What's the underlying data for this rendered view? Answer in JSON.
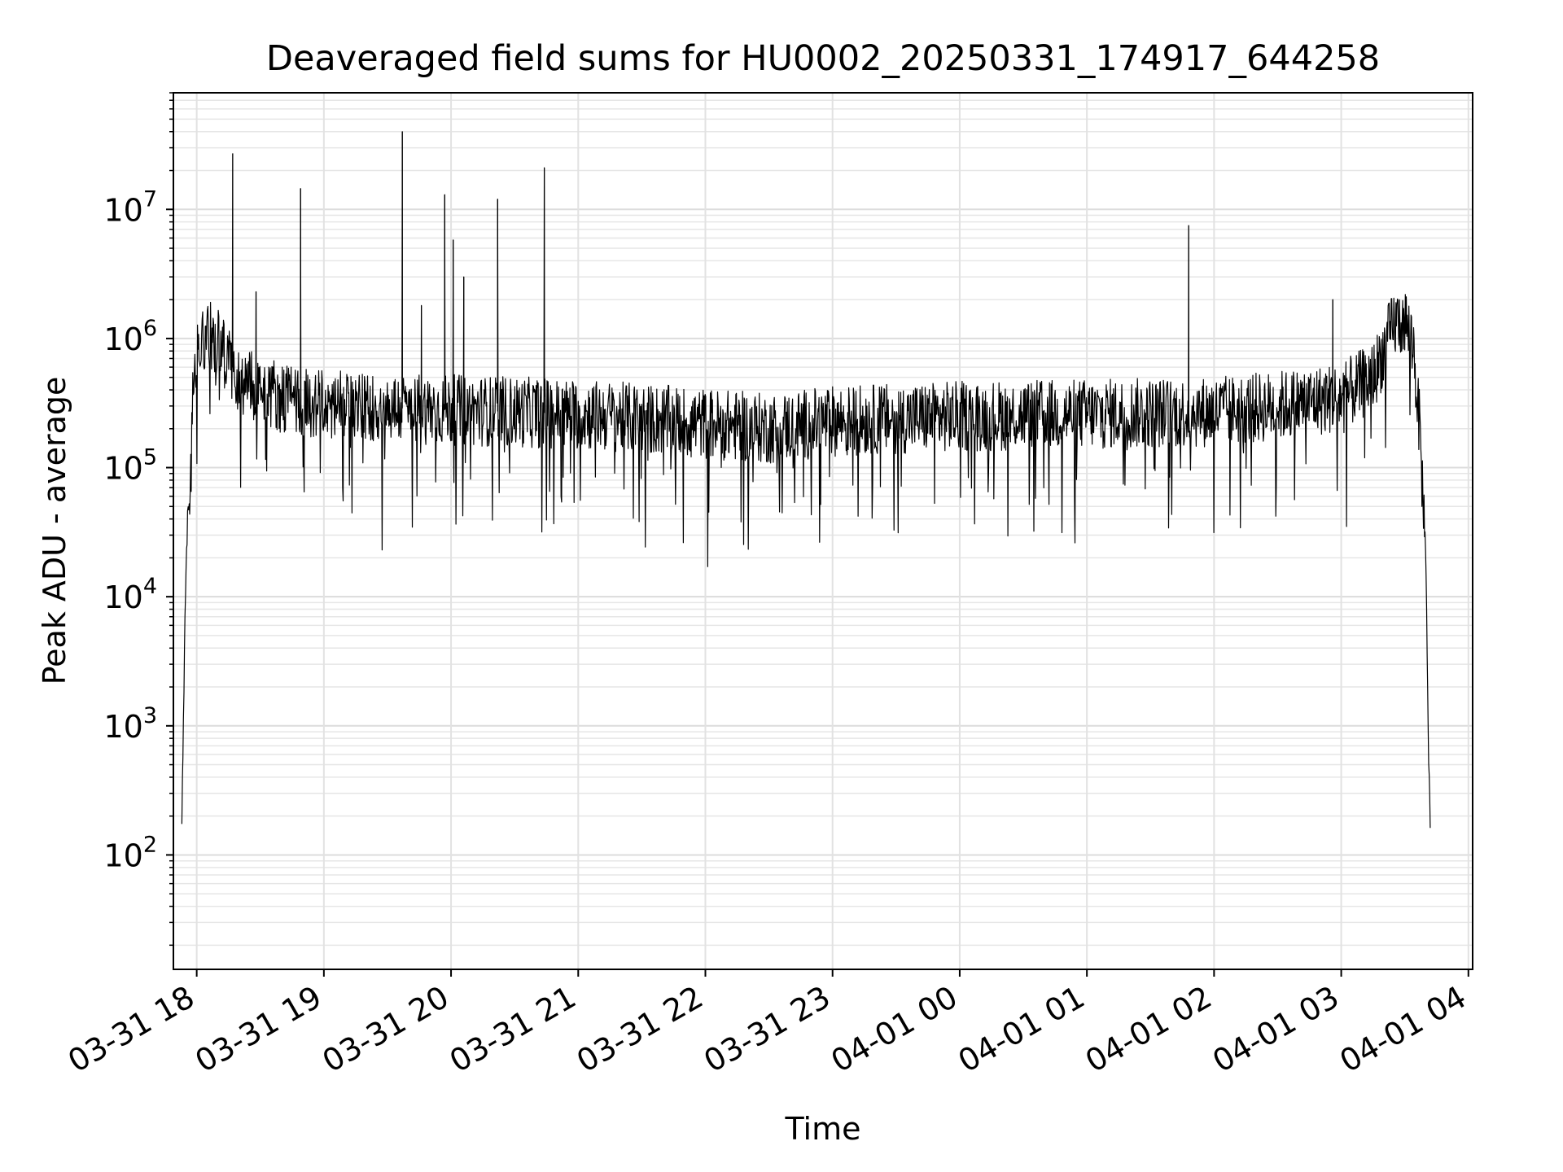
{
  "chart_data": {
    "type": "line",
    "title": "Deaveraged field sums for HU0002_20250331_174917_644258",
    "xlabel": "Time",
    "ylabel": "Peak ADU - average",
    "x_type": "datetime",
    "y_scale": "log",
    "xlim": [
      "2025-03-31 17:49",
      "2025-04-01 04:02"
    ],
    "ylim": [
      13,
      80000000
    ],
    "grid": true,
    "grid_minor": true,
    "line_color": "#000000",
    "x_ticks": [
      {
        "time": "2025-03-31 18:00",
        "label": "03-31 18"
      },
      {
        "time": "2025-03-31 19:00",
        "label": "03-31 19"
      },
      {
        "time": "2025-03-31 20:00",
        "label": "03-31 20"
      },
      {
        "time": "2025-03-31 21:00",
        "label": "03-31 21"
      },
      {
        "time": "2025-03-31 22:00",
        "label": "03-31 22"
      },
      {
        "time": "2025-03-31 23:00",
        "label": "03-31 23"
      },
      {
        "time": "2025-04-01 00:00",
        "label": "04-01 00"
      },
      {
        "time": "2025-04-01 01:00",
        "label": "04-01 01"
      },
      {
        "time": "2025-04-01 02:00",
        "label": "04-01 02"
      },
      {
        "time": "2025-04-01 03:00",
        "label": "04-01 03"
      },
      {
        "time": "2025-04-01 04:00",
        "label": "04-01 04"
      }
    ],
    "y_ticks": [
      {
        "value": 100,
        "base": "10",
        "exp": "2"
      },
      {
        "value": 1000,
        "base": "10",
        "exp": "3"
      },
      {
        "value": 10000,
        "base": "10",
        "exp": "4"
      },
      {
        "value": 100000,
        "base": "10",
        "exp": "5"
      },
      {
        "value": 1000000,
        "base": "10",
        "exp": "6"
      },
      {
        "value": 10000000,
        "base": "10",
        "exp": "7"
      }
    ],
    "series": [
      {
        "type": "line",
        "trend": [
          [
            "2025-03-31 17:53",
            200
          ],
          [
            "2025-03-31 17:54",
            2000
          ],
          [
            "2025-03-31 17:55",
            20000
          ],
          [
            "2025-03-31 17:56",
            50000
          ],
          [
            "2025-03-31 17:57",
            100000
          ],
          [
            "2025-03-31 17:58",
            300000
          ],
          [
            "2025-03-31 18:00",
            800000
          ],
          [
            "2025-03-31 18:05",
            1200000
          ],
          [
            "2025-03-31 18:10",
            900000
          ],
          [
            "2025-03-31 18:20",
            500000
          ],
          [
            "2025-03-31 18:40",
            350000
          ],
          [
            "2025-03-31 19:00",
            300000
          ],
          [
            "2025-03-31 20:00",
            280000
          ],
          [
            "2025-03-31 21:00",
            260000
          ],
          [
            "2025-03-31 22:00",
            220000
          ],
          [
            "2025-03-31 22:30",
            200000
          ],
          [
            "2025-03-31 23:00",
            230000
          ],
          [
            "2025-04-01 00:00",
            250000
          ],
          [
            "2025-04-01 01:00",
            260000
          ],
          [
            "2025-04-01 02:00",
            270000
          ],
          [
            "2025-04-01 02:30",
            300000
          ],
          [
            "2025-04-01 03:00",
            350000
          ],
          [
            "2025-04-01 03:15",
            500000
          ],
          [
            "2025-04-01 03:25",
            1300000
          ],
          [
            "2025-04-01 03:30",
            1400000
          ],
          [
            "2025-04-01 03:34",
            900000
          ],
          [
            "2025-04-01 03:37",
            200000
          ],
          [
            "2025-04-01 03:40",
            20000
          ],
          [
            "2025-04-01 03:41",
            1000
          ],
          [
            "2025-04-01 03:42",
            150
          ]
        ],
        "spikes": [
          [
            "2025-03-31 18:17",
            27000000
          ],
          [
            "2025-03-31 18:28",
            2300000
          ],
          [
            "2025-03-31 18:49",
            14500000
          ],
          [
            "2025-03-31 19:37",
            40000000
          ],
          [
            "2025-03-31 19:46",
            1800000
          ],
          [
            "2025-03-31 19:57",
            13000000
          ],
          [
            "2025-03-31 20:01",
            5800000
          ],
          [
            "2025-03-31 20:06",
            3000000
          ],
          [
            "2025-03-31 20:22",
            12000000
          ],
          [
            "2025-03-31 20:44",
            21000000
          ],
          [
            "2025-04-01 01:48",
            7500000
          ],
          [
            "2025-04-01 02:56",
            2000000
          ]
        ]
      }
    ]
  }
}
